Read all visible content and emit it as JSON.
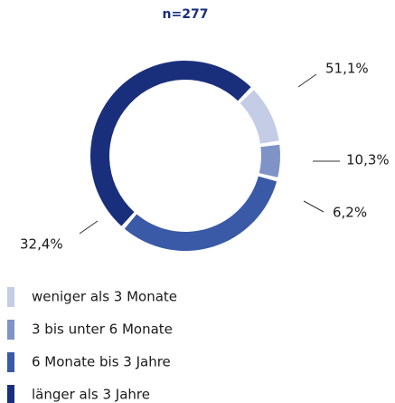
{
  "chart_data": {
    "type": "donut",
    "title": "n=277",
    "categories": [
      "weniger als 3 Monate",
      "3 bis unter 6 Monate",
      "6 Monate bis 3 Jahre",
      "länger als 3 Jahre"
    ],
    "values": [
      10.3,
      6.2,
      32.4,
      51.1
    ],
    "value_labels": [
      "10,3%",
      "6,2%",
      "32,4%",
      "51,1%"
    ],
    "colors": [
      "#c5cce6",
      "#7f93c6",
      "#3a59a6",
      "#1a2f7c"
    ]
  }
}
